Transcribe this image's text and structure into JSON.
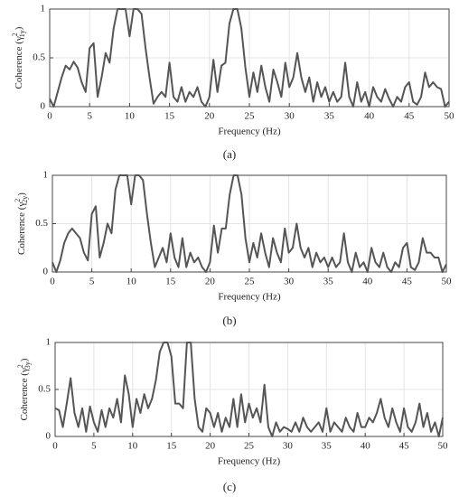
{
  "chart_data": [
    {
      "type": "line",
      "caption": "(a)",
      "xlabel": "Frequency (Hz)",
      "ylabel": "Coherence (γ",
      "ylabel_sup": "2",
      "ylabel_sub": "1y",
      "ylabel_end": ")",
      "xlim": [
        0,
        50
      ],
      "ylim": [
        0,
        1
      ],
      "xticks": [
        0,
        5,
        10,
        15,
        20,
        25,
        30,
        35,
        40,
        45,
        50
      ],
      "yticks": [
        0,
        0.5,
        1
      ],
      "grid": true,
      "series": [
        {
          "name": "coherence",
          "color": "#555555",
          "x": [
            0,
            0.5,
            1,
            1.5,
            2,
            2.5,
            3,
            3.5,
            4,
            4.5,
            5,
            5.5,
            6,
            6.5,
            7,
            7.5,
            8,
            8.5,
            9,
            9.5,
            10,
            10.5,
            11,
            11.5,
            12,
            12.5,
            13,
            13.5,
            14,
            14.5,
            15,
            15.5,
            16,
            16.5,
            17,
            17.5,
            18,
            18.5,
            19,
            19.5,
            20,
            20.5,
            21,
            21.5,
            22,
            22.5,
            23,
            23.5,
            24,
            24.5,
            25,
            25.5,
            26,
            26.5,
            27,
            27.5,
            28,
            28.5,
            29,
            29.5,
            30,
            30.5,
            31,
            31.5,
            32,
            32.5,
            33,
            33.5,
            34,
            34.5,
            35,
            35.5,
            36,
            36.5,
            37,
            37.5,
            38,
            38.5,
            39,
            39.5,
            40,
            40.5,
            41,
            41.5,
            42,
            42.5,
            43,
            43.5,
            44,
            44.5,
            45,
            45.5,
            46,
            46.5,
            47,
            47.5,
            48,
            48.5,
            49,
            49.5,
            50
          ],
          "values": [
            0.08,
            0.0,
            0.15,
            0.3,
            0.42,
            0.38,
            0.46,
            0.4,
            0.25,
            0.15,
            0.6,
            0.65,
            0.1,
            0.3,
            0.55,
            0.45,
            0.8,
            1,
            1,
            1,
            0.72,
            1,
            1,
            0.95,
            0.6,
            0.3,
            0.03,
            0.1,
            0.15,
            0.1,
            0.45,
            0.1,
            0.05,
            0.2,
            0.05,
            0.15,
            0.1,
            0.2,
            0.05,
            0.0,
            0.1,
            0.48,
            0.15,
            0.42,
            0.45,
            0.85,
            1,
            1,
            0.8,
            0.4,
            0.1,
            0.35,
            0.15,
            0.42,
            0.2,
            0.05,
            0.38,
            0.25,
            0.1,
            0.45,
            0.2,
            0.3,
            0.55,
            0.3,
            0.15,
            0.3,
            0.05,
            0.25,
            0.1,
            0.2,
            0.05,
            0.15,
            0.05,
            0.1,
            0.45,
            0.1,
            0.0,
            0.25,
            0.05,
            0.15,
            0.0,
            0.2,
            0.1,
            0.05,
            0.18,
            0.08,
            0.0,
            0.1,
            0.05,
            0.2,
            0.25,
            0.05,
            0.02,
            0.1,
            0.35,
            0.2,
            0.25,
            0.2,
            0.18,
            0.0,
            0.05
          ]
        }
      ]
    },
    {
      "type": "line",
      "caption": "(b)",
      "xlabel": "Frequency (Hz)",
      "ylabel": "Coherence (γ",
      "ylabel_sup": "2",
      "ylabel_sub": "2y",
      "ylabel_end": ")",
      "xlim": [
        0,
        50
      ],
      "ylim": [
        0,
        1
      ],
      "xticks": [
        0,
        5,
        10,
        15,
        20,
        25,
        30,
        35,
        40,
        45,
        50
      ],
      "yticks": [
        0,
        0.5,
        1
      ],
      "grid": true,
      "series": [
        {
          "name": "coherence",
          "color": "#555555",
          "x": [
            0,
            0.5,
            1,
            1.5,
            2,
            2.5,
            3,
            3.5,
            4,
            4.5,
            5,
            5.5,
            6,
            6.5,
            7,
            7.5,
            8,
            8.5,
            9,
            9.5,
            10,
            10.5,
            11,
            11.5,
            12,
            12.5,
            13,
            13.5,
            14,
            14.5,
            15,
            15.5,
            16,
            16.5,
            17,
            17.5,
            18,
            18.5,
            19,
            19.5,
            20,
            20.5,
            21,
            21.5,
            22,
            22.5,
            23,
            23.5,
            24,
            24.5,
            25,
            25.5,
            26,
            26.5,
            27,
            27.5,
            28,
            28.5,
            29,
            29.5,
            30,
            30.5,
            31,
            31.5,
            32,
            32.5,
            33,
            33.5,
            34,
            34.5,
            35,
            35.5,
            36,
            36.5,
            37,
            37.5,
            38,
            38.5,
            39,
            39.5,
            40,
            40.5,
            41,
            41.5,
            42,
            42.5,
            43,
            43.5,
            44,
            44.5,
            45,
            45.5,
            46,
            46.5,
            47,
            47.5,
            48,
            48.5,
            49,
            49.5,
            50
          ],
          "values": [
            0.1,
            0.0,
            0.12,
            0.3,
            0.4,
            0.45,
            0.4,
            0.35,
            0.2,
            0.12,
            0.6,
            0.68,
            0.15,
            0.3,
            0.5,
            0.4,
            0.85,
            1,
            1,
            1,
            0.7,
            1,
            1,
            0.95,
            0.6,
            0.3,
            0.05,
            0.15,
            0.25,
            0.1,
            0.4,
            0.15,
            0.05,
            0.35,
            0.05,
            0.2,
            0.1,
            0.15,
            0.05,
            0.0,
            0.1,
            0.48,
            0.2,
            0.45,
            0.45,
            0.8,
            1,
            1,
            0.8,
            0.35,
            0.1,
            0.3,
            0.15,
            0.4,
            0.2,
            0.05,
            0.35,
            0.2,
            0.1,
            0.45,
            0.2,
            0.25,
            0.5,
            0.25,
            0.15,
            0.25,
            0.05,
            0.2,
            0.1,
            0.15,
            0.05,
            0.15,
            0.05,
            0.1,
            0.4,
            0.1,
            0.0,
            0.2,
            0.05,
            0.1,
            0.0,
            0.25,
            0.1,
            0.05,
            0.2,
            0.05,
            0.0,
            0.1,
            0.05,
            0.25,
            0.3,
            0.05,
            0.02,
            0.1,
            0.35,
            0.2,
            0.2,
            0.15,
            0.15,
            0.0,
            0.08
          ]
        }
      ]
    },
    {
      "type": "line",
      "caption": "(c)",
      "xlabel": "Frequency (Hz)",
      "ylabel": "Coherence (γ",
      "ylabel_sup": "2",
      "ylabel_sub": "3y",
      "ylabel_end": ")",
      "xlim": [
        0,
        50
      ],
      "ylim": [
        0,
        1
      ],
      "xticks": [
        0,
        5,
        10,
        15,
        20,
        25,
        30,
        35,
        40,
        45,
        50
      ],
      "yticks": [
        0,
        0.5,
        1
      ],
      "grid": true,
      "series": [
        {
          "name": "coherence",
          "color": "#555555",
          "x": [
            0,
            0.5,
            1,
            1.5,
            2,
            2.5,
            3,
            3.5,
            4,
            4.5,
            5,
            5.5,
            6,
            6.5,
            7,
            7.5,
            8,
            8.5,
            9,
            9.5,
            10,
            10.5,
            11,
            11.5,
            12,
            12.5,
            13,
            13.5,
            14,
            14.5,
            15,
            15.5,
            16,
            16.5,
            17,
            17.5,
            18,
            18.5,
            19,
            19.5,
            20,
            20.5,
            21,
            21.5,
            22,
            22.5,
            23,
            23.5,
            24,
            24.5,
            25,
            25.5,
            26,
            26.5,
            27,
            27.5,
            28,
            28.5,
            29,
            29.5,
            30,
            30.5,
            31,
            31.5,
            32,
            32.5,
            33,
            33.5,
            34,
            34.5,
            35,
            35.5,
            36,
            36.5,
            37,
            37.5,
            38,
            38.5,
            39,
            39.5,
            40,
            40.5,
            41,
            41.5,
            42,
            42.5,
            43,
            43.5,
            44,
            44.5,
            45,
            45.5,
            46,
            46.5,
            47,
            47.5,
            48,
            48.5,
            49,
            49.5,
            50
          ],
          "values": [
            0.3,
            0.28,
            0.1,
            0.35,
            0.62,
            0.25,
            0.1,
            0.3,
            0.05,
            0.32,
            0.15,
            0.05,
            0.28,
            0.1,
            0.3,
            0.2,
            0.4,
            0.15,
            0.65,
            0.45,
            0.1,
            0.4,
            0.25,
            0.45,
            0.3,
            0.4,
            0.6,
            0.9,
            1,
            1,
            0.85,
            0.35,
            0.35,
            0.3,
            1,
            1,
            0.4,
            0.1,
            0.05,
            0.3,
            0.25,
            0.1,
            0.25,
            0.05,
            0.2,
            0.1,
            0.4,
            0.1,
            0.45,
            0.15,
            0.35,
            0.2,
            0.3,
            0.15,
            0.55,
            0.1,
            0.0,
            0.15,
            0.05,
            0.1,
            0.08,
            0.05,
            0.15,
            0.05,
            0.2,
            0.1,
            0.05,
            0.1,
            0.15,
            0.05,
            0.3,
            0.05,
            0.15,
            0.1,
            0.05,
            0.2,
            0.1,
            0.05,
            0.25,
            0.1,
            0.1,
            0.2,
            0.15,
            0.25,
            0.4,
            0.2,
            0.1,
            0.3,
            0.15,
            0.05,
            0.3,
            0.1,
            0.05,
            0.15,
            0.35,
            0.1,
            0.25,
            0.05,
            0.15,
            0.0,
            0.2
          ]
        }
      ]
    }
  ]
}
